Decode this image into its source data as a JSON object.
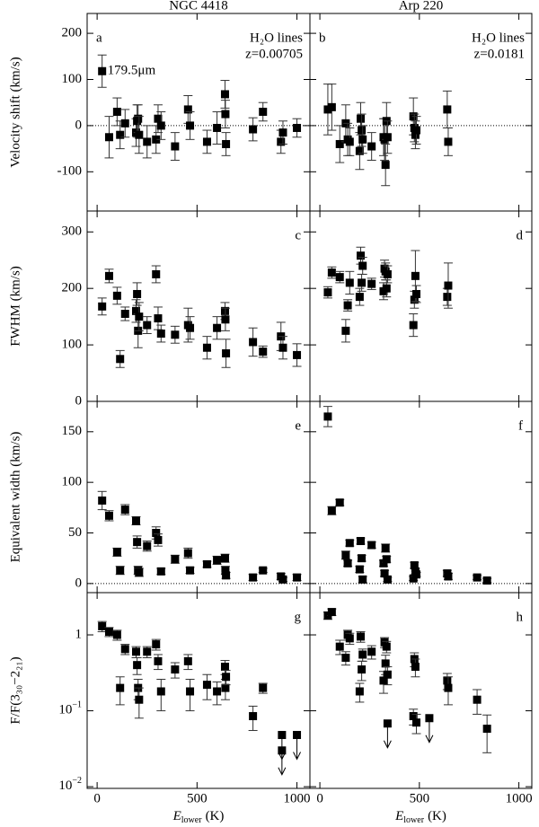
{
  "chart_data": [
    {
      "type": "scatter",
      "title": "NGC 4418",
      "panel_label": "a",
      "label_corner": "top-left",
      "annotations": [
        "H₂O lines",
        "z=0.00705"
      ],
      "point_annotation": "179.5μm",
      "color": "#000000",
      "x": [
        25,
        60,
        100,
        115,
        140,
        195,
        200,
        205,
        210,
        250,
        295,
        305,
        320,
        390,
        455,
        465,
        550,
        600,
        640,
        642,
        645,
        780,
        830,
        920,
        930,
        1000
      ],
      "values": [
        118,
        -25,
        30,
        -20,
        5,
        -15,
        10,
        15,
        -20,
        -35,
        -30,
        15,
        0,
        -45,
        35,
        0,
        -35,
        -5,
        68,
        25,
        -40,
        -8,
        30,
        -35,
        -15,
        -5
      ],
      "errors": [
        35,
        45,
        30,
        30,
        30,
        30,
        35,
        30,
        40,
        35,
        30,
        30,
        30,
        30,
        30,
        30,
        25,
        35,
        30,
        30,
        25,
        25,
        20,
        25,
        25,
        20
      ],
      "xlim": [
        -50,
        1065
      ],
      "ylim": [
        -185,
        243
      ],
      "yticks": [
        -100,
        0,
        100,
        200
      ],
      "ylabel": "Velocity shift (km/s)",
      "zero_line": true,
      "log": false
    },
    {
      "type": "scatter",
      "title": "Arp 220",
      "panel_label": "b",
      "label_corner": "top-left",
      "annotations": [
        "H₂O lines",
        "z=0.0181"
      ],
      "color": "#000000",
      "x": [
        40,
        60,
        100,
        130,
        140,
        150,
        200,
        205,
        210,
        215,
        260,
        320,
        325,
        330,
        335,
        340,
        470,
        475,
        480,
        485,
        640,
        645
      ],
      "values": [
        35,
        40,
        -40,
        5,
        -30,
        -35,
        -55,
        15,
        -10,
        -30,
        -45,
        -25,
        -30,
        -85,
        10,
        -25,
        20,
        -5,
        -20,
        -10,
        35,
        -35
      ],
      "errors": [
        55,
        50,
        40,
        40,
        35,
        30,
        40,
        35,
        35,
        30,
        30,
        40,
        45,
        45,
        40,
        35,
        40,
        30,
        30,
        30,
        40,
        30
      ],
      "xlim": [
        -50,
        1065
      ],
      "ylim": [
        -185,
        243
      ],
      "zero_line": true,
      "log": false
    },
    {
      "type": "scatter",
      "panel_label": "c",
      "label_corner": "top-right",
      "color": "#000000",
      "x": [
        25,
        60,
        100,
        115,
        140,
        195,
        200,
        205,
        210,
        250,
        295,
        305,
        320,
        390,
        455,
        465,
        550,
        600,
        640,
        642,
        645,
        780,
        830,
        920,
        930,
        1000
      ],
      "values": [
        168,
        222,
        187,
        75,
        155,
        160,
        190,
        125,
        150,
        135,
        225,
        147,
        120,
        118,
        135,
        130,
        95,
        130,
        160,
        145,
        85,
        105,
        88,
        115,
        95,
        82
      ],
      "errors": [
        15,
        12,
        15,
        15,
        12,
        20,
        20,
        30,
        25,
        15,
        15,
        20,
        15,
        15,
        30,
        20,
        20,
        20,
        15,
        20,
        25,
        25,
        10,
        25,
        20,
        20
      ],
      "xlim": [
        -50,
        1065
      ],
      "ylim": [
        0,
        337
      ],
      "yticks": [
        0,
        100,
        200,
        300
      ],
      "ylabel": "FWHM (km/s)",
      "zero_line": false,
      "log": false
    },
    {
      "type": "scatter",
      "panel_label": "d",
      "label_corner": "top-right",
      "color": "#000000",
      "x": [
        40,
        60,
        100,
        130,
        140,
        150,
        200,
        205,
        210,
        215,
        260,
        320,
        325,
        330,
        335,
        340,
        470,
        475,
        480,
        485,
        640,
        645
      ],
      "values": [
        193,
        228,
        220,
        125,
        170,
        210,
        185,
        258,
        210,
        240,
        208,
        195,
        235,
        230,
        200,
        225,
        135,
        180,
        222,
        190,
        185,
        205
      ],
      "errors": [
        10,
        10,
        10,
        20,
        10,
        20,
        15,
        15,
        15,
        15,
        10,
        15,
        15,
        15,
        15,
        15,
        20,
        15,
        45,
        15,
        15,
        40
      ],
      "xlim": [
        -50,
        1065
      ],
      "ylim": [
        0,
        337
      ],
      "zero_line": false,
      "log": false
    },
    {
      "type": "scatter",
      "panel_label": "e",
      "label_corner": "top-right",
      "color": "#000000",
      "x": [
        25,
        60,
        100,
        115,
        140,
        195,
        200,
        205,
        210,
        250,
        295,
        305,
        320,
        390,
        455,
        465,
        550,
        600,
        640,
        642,
        645,
        780,
        830,
        920,
        930,
        1000
      ],
      "values": [
        82,
        67,
        31,
        13,
        73,
        62,
        41,
        13,
        11,
        37,
        50,
        43,
        12,
        24,
        30,
        13,
        19,
        23,
        25,
        13,
        8,
        6,
        13,
        7,
        4,
        6
      ],
      "errors": [
        9,
        5,
        4,
        4,
        5,
        4,
        6,
        4,
        4,
        5,
        6,
        6,
        3,
        4,
        5,
        3,
        3,
        4,
        4,
        4,
        3,
        3,
        2,
        3,
        2,
        3
      ],
      "xlim": [
        -50,
        1065
      ],
      "ylim": [
        -9,
        180
      ],
      "yticks": [
        0,
        50,
        100,
        150
      ],
      "ylabel": "Equivalent width (km/s)",
      "zero_line": true,
      "log": false
    },
    {
      "type": "scatter",
      "panel_label": "f",
      "label_corner": "top-right",
      "color": "#000000",
      "x": [
        40,
        60,
        100,
        130,
        140,
        150,
        200,
        205,
        210,
        215,
        260,
        320,
        325,
        330,
        335,
        340,
        470,
        475,
        480,
        485,
        640,
        645,
        790,
        840
      ],
      "values": [
        165,
        72,
        80,
        28,
        20,
        40,
        14,
        42,
        25,
        4,
        38,
        20,
        10,
        35,
        24,
        4,
        5,
        18,
        12,
        9,
        10,
        7,
        6,
        3
      ],
      "errors": [
        10,
        4,
        3,
        4,
        3,
        3,
        3,
        3,
        3,
        3,
        3,
        3,
        3,
        4,
        3,
        2,
        2,
        3,
        3,
        2,
        3,
        3,
        2,
        2
      ],
      "xlim": [
        -50,
        1065
      ],
      "ylim": [
        -9,
        180
      ],
      "zero_line": true,
      "log": false
    },
    {
      "type": "scatter",
      "panel_label": "g",
      "label_corner": "top-right",
      "color": "#000000",
      "x": [
        25,
        60,
        100,
        115,
        140,
        195,
        200,
        205,
        210,
        250,
        295,
        305,
        320,
        390,
        455,
        465,
        550,
        600,
        640,
        642,
        645,
        780,
        830
      ],
      "values": [
        1.3,
        1.1,
        1.0,
        0.2,
        0.65,
        0.6,
        0.4,
        0.2,
        0.14,
        0.6,
        0.75,
        0.45,
        0.18,
        0.35,
        0.45,
        0.18,
        0.22,
        0.18,
        0.38,
        0.2,
        0.28,
        0.085,
        0.2
      ],
      "errors": [
        0.2,
        0.15,
        0.15,
        0.08,
        0.1,
        0.1,
        0.1,
        0.06,
        0.06,
        0.1,
        0.12,
        0.1,
        0.08,
        0.08,
        0.1,
        0.08,
        0.08,
        0.06,
        0.08,
        0.06,
        0.06,
        0.03,
        0.03
      ],
      "limits": {
        "x": [
          925,
          925,
          1000
        ],
        "values": [
          0.048,
          0.03,
          0.048
        ]
      },
      "xlim": [
        -50,
        1065
      ],
      "xticks": [
        0,
        500,
        1000
      ],
      "ylim": [
        0.0095,
        3.6
      ],
      "yticks": [
        {
          "value": 0.01,
          "label": "10",
          "exponent": "−2"
        },
        {
          "value": 0.1,
          "label": "10",
          "exponent": "−1"
        },
        1
      ],
      "ylabel": "F/F(3₃₀−2₂₁)",
      "xlabel": {
        "symbol": "E",
        "subscript": "lower",
        "unit": "(K)"
      },
      "zero_line": false,
      "log": true
    },
    {
      "type": "scatter",
      "panel_label": "h",
      "label_corner": "top-right",
      "color": "#000000",
      "x": [
        40,
        60,
        100,
        130,
        140,
        150,
        200,
        205,
        210,
        215,
        260,
        320,
        325,
        330,
        335,
        340,
        470,
        475,
        480,
        485,
        640,
        645,
        790,
        840
      ],
      "values": [
        1.8,
        2.0,
        0.7,
        0.5,
        1.0,
        0.9,
        0.18,
        0.95,
        0.35,
        0.55,
        0.6,
        0.25,
        0.8,
        0.42,
        0.7,
        0.3,
        0.085,
        0.48,
        0.38,
        0.07,
        0.25,
        0.2,
        0.14,
        0.058
      ],
      "errors": [
        0.2,
        0.2,
        0.15,
        0.1,
        0.15,
        0.15,
        0.05,
        0.15,
        0.1,
        0.1,
        0.12,
        0.08,
        0.12,
        0.12,
        0.12,
        0.08,
        0.02,
        0.1,
        0.1,
        0.02,
        0.06,
        0.08,
        0.05,
        0.03
      ],
      "limits": {
        "x": [
          340,
          550
        ],
        "values": [
          0.068,
          0.08
        ]
      },
      "xlim": [
        -50,
        1065
      ],
      "xticks": [
        0,
        500,
        1000
      ],
      "ylim": [
        0.0095,
        3.6
      ],
      "xlabel": {
        "symbol": "E",
        "subscript": "lower",
        "unit": "(K)"
      },
      "zero_line": false,
      "log": true
    }
  ]
}
